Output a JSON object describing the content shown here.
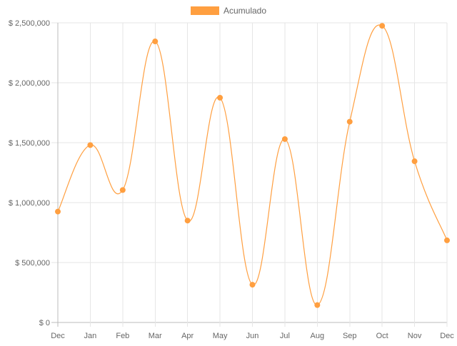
{
  "chart_data": {
    "type": "line",
    "categories": [
      "Dec",
      "Jan",
      "Feb",
      "Mar",
      "Apr",
      "May",
      "Jun",
      "Jul",
      "Aug",
      "Sep",
      "Oct",
      "Nov",
      "Dec"
    ],
    "series": [
      {
        "name": "Acumulado",
        "color": "#ff9f40",
        "values": [
          925000,
          1480000,
          1105000,
          2345000,
          850000,
          1875000,
          315000,
          1530000,
          145000,
          1675000,
          2475000,
          1345000,
          685000
        ]
      }
    ],
    "y_ticks": [
      "$ 0",
      "$ 500,000",
      "$ 1,000,000",
      "$ 1,500,000",
      "$ 2,000,000",
      "$ 2,500,000"
    ],
    "ylim": [
      0,
      2500000
    ],
    "grid": true,
    "legend_position": "top-center",
    "smooth": true
  }
}
